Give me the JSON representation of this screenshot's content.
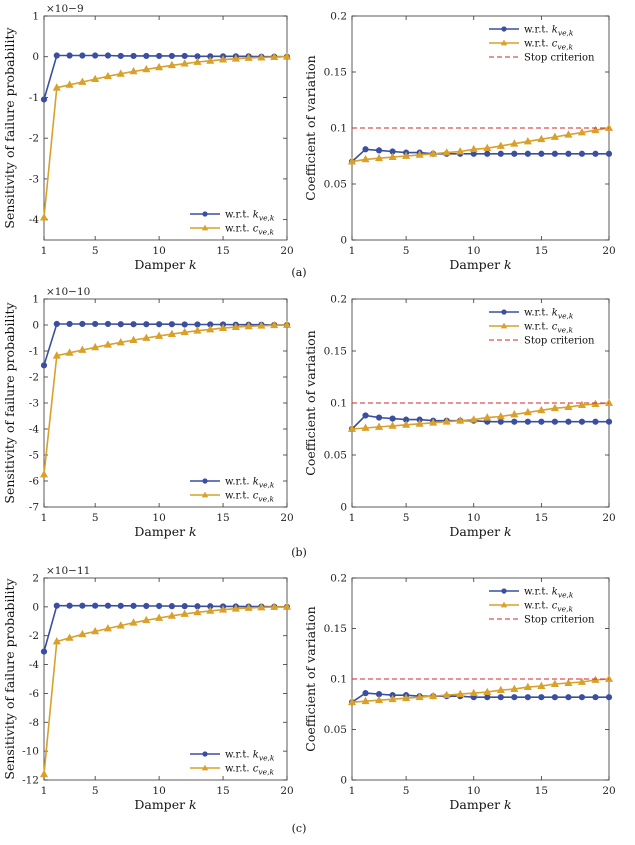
{
  "chart_data": [
    {
      "id": "a-left",
      "type": "line",
      "xlabel": "Damper k",
      "ylabel": "Sensitivity of failure probability",
      "multiplier": "×10−9",
      "x": [
        1,
        2,
        3,
        4,
        5,
        6,
        7,
        8,
        9,
        10,
        11,
        12,
        13,
        14,
        15,
        16,
        17,
        18,
        19,
        20
      ],
      "xlim": [
        1,
        20
      ],
      "xticks": [
        1,
        5,
        10,
        15,
        20
      ],
      "ylim": [
        -4.5,
        1
      ],
      "yticks": [
        1,
        0,
        -1,
        -2,
        -3,
        -4
      ],
      "legend_position": "bottom-right",
      "series": [
        {
          "name": "w.r.t. k_ve,k",
          "color": "#3b4fa0",
          "marker": "circle",
          "values": [
            -1.05,
            0.03,
            0.03,
            0.03,
            0.03,
            0.03,
            0.02,
            0.02,
            0.02,
            0.02,
            0.02,
            0.02,
            0.01,
            0.01,
            0.01,
            0.01,
            0.01,
            0.0,
            0.0,
            0.0
          ]
        },
        {
          "name": "w.r.t. c_ve,k",
          "color": "#d9a02a",
          "marker": "triangle",
          "values": [
            -3.95,
            -0.76,
            -0.69,
            -0.62,
            -0.55,
            -0.48,
            -0.42,
            -0.36,
            -0.31,
            -0.26,
            -0.21,
            -0.17,
            -0.13,
            -0.1,
            -0.07,
            -0.05,
            -0.03,
            -0.02,
            -0.01,
            0.0
          ]
        }
      ]
    },
    {
      "id": "a-right",
      "type": "line",
      "xlabel": "Damper k",
      "ylabel": "Coefficient of variation",
      "x": [
        1,
        2,
        3,
        4,
        5,
        6,
        7,
        8,
        9,
        10,
        11,
        12,
        13,
        14,
        15,
        16,
        17,
        18,
        19,
        20
      ],
      "xlim": [
        1,
        20
      ],
      "xticks": [
        1,
        5,
        10,
        15,
        20
      ],
      "ylim": [
        0,
        0.2
      ],
      "yticks": [
        0,
        0.05,
        0.1,
        0.15,
        0.2
      ],
      "legend_position": "top-right",
      "series": [
        {
          "name": "w.r.t. k_ve,k",
          "color": "#3b4fa0",
          "marker": "circle",
          "values": [
            0.07,
            0.081,
            0.08,
            0.079,
            0.078,
            0.078,
            0.077,
            0.077,
            0.077,
            0.077,
            0.077,
            0.077,
            0.077,
            0.077,
            0.077,
            0.077,
            0.077,
            0.077,
            0.077,
            0.077
          ]
        },
        {
          "name": "w.r.t. c_ve,k",
          "color": "#d9a02a",
          "marker": "triangle",
          "values": [
            0.07,
            0.072,
            0.073,
            0.074,
            0.075,
            0.076,
            0.077,
            0.078,
            0.079,
            0.081,
            0.082,
            0.084,
            0.086,
            0.088,
            0.09,
            0.092,
            0.094,
            0.096,
            0.098,
            0.1
          ]
        },
        {
          "name": "Stop criterion",
          "color": "#d62728",
          "style": "dashed",
          "values": [
            0.1,
            0.1,
            0.1,
            0.1,
            0.1,
            0.1,
            0.1,
            0.1,
            0.1,
            0.1,
            0.1,
            0.1,
            0.1,
            0.1,
            0.1,
            0.1,
            0.1,
            0.1,
            0.1,
            0.1
          ]
        }
      ]
    },
    {
      "id": "b-left",
      "type": "line",
      "xlabel": "Damper k",
      "ylabel": "Sensitivity of failure probability",
      "multiplier": "×10−10",
      "x": [
        1,
        2,
        3,
        4,
        5,
        6,
        7,
        8,
        9,
        10,
        11,
        12,
        13,
        14,
        15,
        16,
        17,
        18,
        19,
        20
      ],
      "xlim": [
        1,
        20
      ],
      "xticks": [
        1,
        5,
        10,
        15,
        20
      ],
      "ylim": [
        -7,
        1
      ],
      "yticks": [
        1,
        0,
        -1,
        -2,
        -3,
        -4,
        -5,
        -6,
        -7
      ],
      "legend_position": "bottom-right",
      "series": [
        {
          "name": "w.r.t. k_ve,k",
          "color": "#3b4fa0",
          "marker": "circle",
          "values": [
            -1.55,
            0.04,
            0.04,
            0.04,
            0.04,
            0.04,
            0.03,
            0.03,
            0.03,
            0.03,
            0.03,
            0.02,
            0.02,
            0.02,
            0.02,
            0.01,
            0.01,
            0.01,
            0.0,
            0.0
          ]
        },
        {
          "name": "w.r.t. c_ve,k",
          "color": "#d9a02a",
          "marker": "triangle",
          "values": [
            -5.75,
            -1.18,
            -1.07,
            -0.96,
            -0.86,
            -0.76,
            -0.67,
            -0.58,
            -0.5,
            -0.42,
            -0.35,
            -0.28,
            -0.22,
            -0.17,
            -0.12,
            -0.08,
            -0.05,
            -0.03,
            -0.01,
            0.0
          ]
        }
      ]
    },
    {
      "id": "b-right",
      "type": "line",
      "xlabel": "Damper k",
      "ylabel": "Coefficient of variation",
      "x": [
        1,
        2,
        3,
        4,
        5,
        6,
        7,
        8,
        9,
        10,
        11,
        12,
        13,
        14,
        15,
        16,
        17,
        18,
        19,
        20
      ],
      "xlim": [
        1,
        20
      ],
      "xticks": [
        1,
        5,
        10,
        15,
        20
      ],
      "ylim": [
        0,
        0.2
      ],
      "yticks": [
        0,
        0.05,
        0.1,
        0.15,
        0.2
      ],
      "legend_position": "top-right",
      "series": [
        {
          "name": "w.r.t. k_ve,k",
          "color": "#3b4fa0",
          "marker": "circle",
          "values": [
            0.075,
            0.088,
            0.086,
            0.085,
            0.084,
            0.084,
            0.083,
            0.083,
            0.083,
            0.083,
            0.082,
            0.082,
            0.082,
            0.082,
            0.082,
            0.082,
            0.082,
            0.082,
            0.082,
            0.082
          ]
        },
        {
          "name": "w.r.t. c_ve,k",
          "color": "#d9a02a",
          "marker": "triangle",
          "values": [
            0.075,
            0.076,
            0.077,
            0.078,
            0.079,
            0.08,
            0.081,
            0.082,
            0.083,
            0.084,
            0.086,
            0.087,
            0.089,
            0.091,
            0.093,
            0.095,
            0.096,
            0.098,
            0.099,
            0.1
          ]
        },
        {
          "name": "Stop criterion",
          "color": "#d62728",
          "style": "dashed",
          "values": [
            0.1,
            0.1,
            0.1,
            0.1,
            0.1,
            0.1,
            0.1,
            0.1,
            0.1,
            0.1,
            0.1,
            0.1,
            0.1,
            0.1,
            0.1,
            0.1,
            0.1,
            0.1,
            0.1,
            0.1
          ]
        }
      ]
    },
    {
      "id": "c-left",
      "type": "line",
      "xlabel": "Damper k",
      "ylabel": "Sensitivity of failure probability",
      "multiplier": "×10−11",
      "x": [
        1,
        2,
        3,
        4,
        5,
        6,
        7,
        8,
        9,
        10,
        11,
        12,
        13,
        14,
        15,
        16,
        17,
        18,
        19,
        20
      ],
      "xlim": [
        1,
        20
      ],
      "xticks": [
        1,
        5,
        10,
        15,
        20
      ],
      "ylim": [
        -12,
        2
      ],
      "yticks": [
        2,
        0,
        -2,
        -4,
        -6,
        -8,
        -10,
        -12
      ],
      "legend_position": "bottom-right",
      "series": [
        {
          "name": "w.r.t. k_ve,k",
          "color": "#3b4fa0",
          "marker": "circle",
          "values": [
            -3.1,
            0.08,
            0.08,
            0.08,
            0.08,
            0.08,
            0.07,
            0.07,
            0.06,
            0.06,
            0.05,
            0.05,
            0.04,
            0.04,
            0.03,
            0.03,
            0.02,
            0.02,
            0.01,
            0.0
          ]
        },
        {
          "name": "w.r.t. c_ve,k",
          "color": "#d9a02a",
          "marker": "triangle",
          "values": [
            -11.6,
            -2.4,
            -2.15,
            -1.9,
            -1.7,
            -1.5,
            -1.3,
            -1.1,
            -0.93,
            -0.77,
            -0.62,
            -0.49,
            -0.38,
            -0.28,
            -0.2,
            -0.13,
            -0.08,
            -0.04,
            -0.01,
            0.0
          ]
        }
      ]
    },
    {
      "id": "c-right",
      "type": "line",
      "xlabel": "Damper k",
      "ylabel": "Coefficient of variation",
      "x": [
        1,
        2,
        3,
        4,
        5,
        6,
        7,
        8,
        9,
        10,
        11,
        12,
        13,
        14,
        15,
        16,
        17,
        18,
        19,
        20
      ],
      "xlim": [
        1,
        20
      ],
      "xticks": [
        1,
        5,
        10,
        15,
        20
      ],
      "ylim": [
        0,
        0.2
      ],
      "yticks": [
        0,
        0.05,
        0.1,
        0.15,
        0.2
      ],
      "legend_position": "top-right",
      "series": [
        {
          "name": "w.r.t. k_ve,k",
          "color": "#3b4fa0",
          "marker": "circle",
          "values": [
            0.077,
            0.086,
            0.085,
            0.084,
            0.084,
            0.083,
            0.083,
            0.083,
            0.083,
            0.082,
            0.082,
            0.082,
            0.082,
            0.082,
            0.082,
            0.082,
            0.082,
            0.082,
            0.082,
            0.082
          ]
        },
        {
          "name": "w.r.t. c_ve,k",
          "color": "#d9a02a",
          "marker": "triangle",
          "values": [
            0.077,
            0.078,
            0.079,
            0.08,
            0.081,
            0.082,
            0.083,
            0.084,
            0.085,
            0.086,
            0.087,
            0.089,
            0.09,
            0.092,
            0.093,
            0.095,
            0.096,
            0.097,
            0.099,
            0.1
          ]
        },
        {
          "name": "Stop criterion",
          "color": "#d62728",
          "style": "dashed",
          "values": [
            0.1,
            0.1,
            0.1,
            0.1,
            0.1,
            0.1,
            0.1,
            0.1,
            0.1,
            0.1,
            0.1,
            0.1,
            0.1,
            0.1,
            0.1,
            0.1,
            0.1,
            0.1,
            0.1,
            0.1
          ]
        }
      ]
    }
  ],
  "sub_labels": [
    "(a)",
    "(b)",
    "(c)"
  ]
}
